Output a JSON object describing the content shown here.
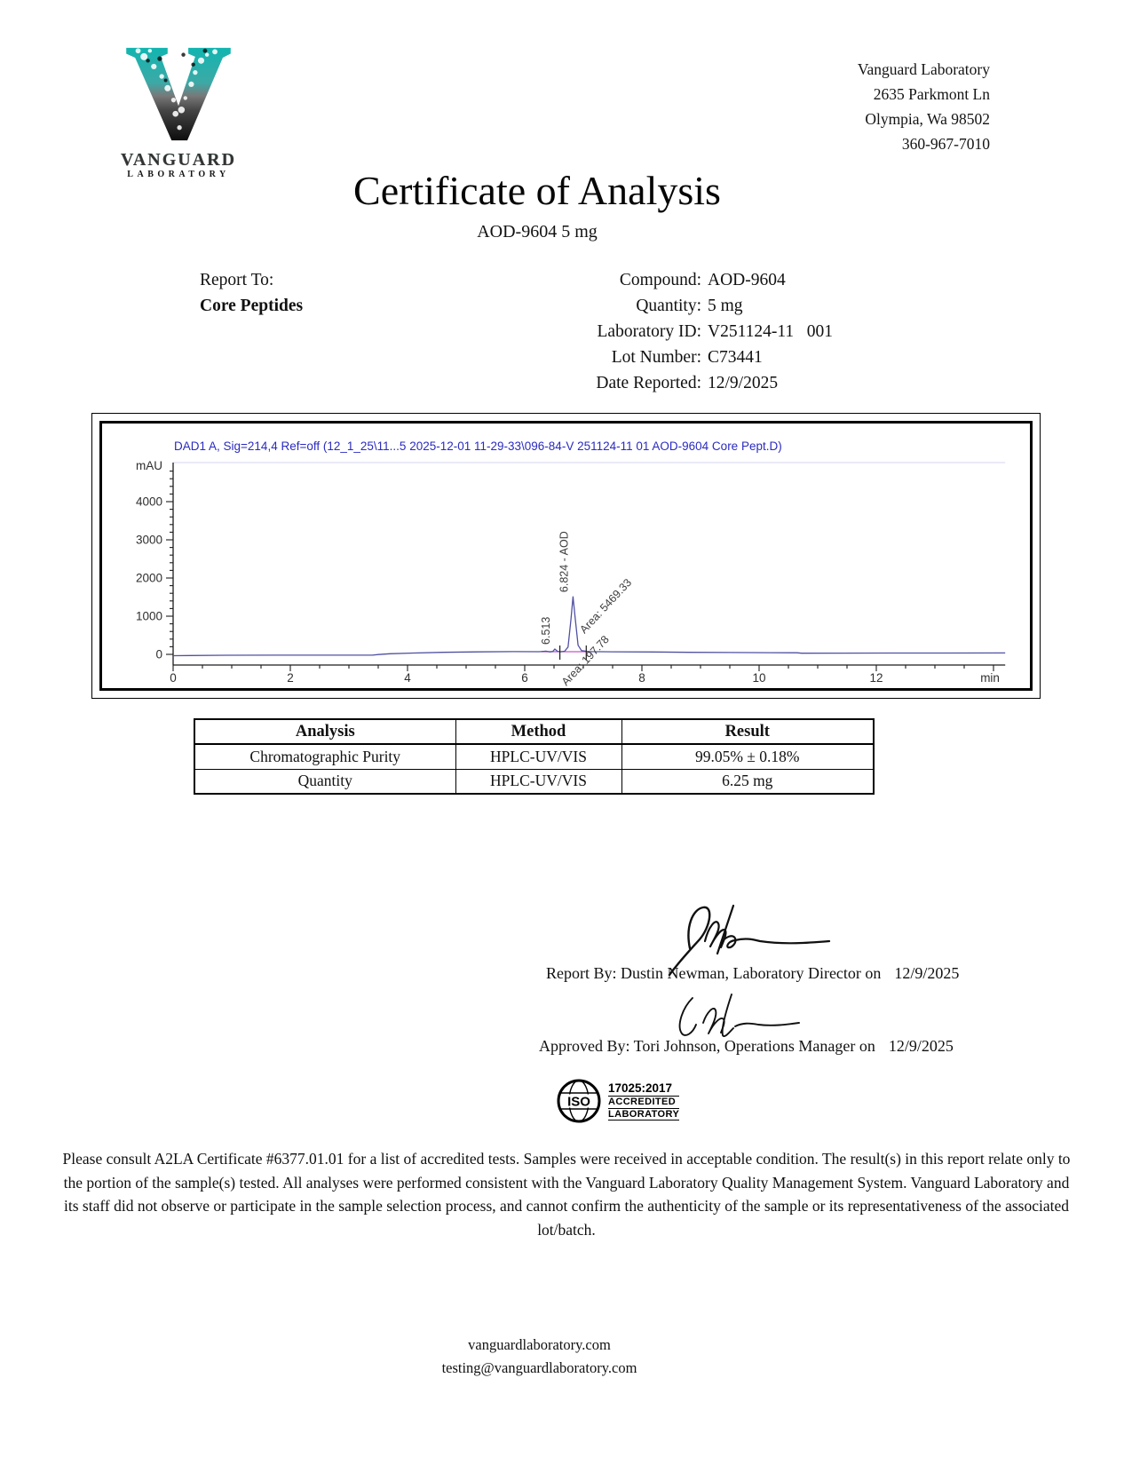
{
  "header": {
    "logo": {
      "wordmark": "VANGUARD",
      "sub": "LABORATORY"
    },
    "address": {
      "name": "Vanguard Laboratory",
      "street": "2635 Parkmont Ln",
      "city": "Olympia, Wa 98502",
      "phone": "360-967-7010"
    }
  },
  "title": {
    "main": "Certificate of Analysis",
    "subtitle": "AOD-9604 5 mg"
  },
  "report_info": {
    "report_to_label": "Report To:",
    "report_to_value": "Core Peptides",
    "fields": [
      {
        "label": "Compound:",
        "value": "AOD-9604"
      },
      {
        "label": "Quantity:",
        "value": "5 mg"
      },
      {
        "label": "Laboratory ID:",
        "value": "V251124-11   001"
      },
      {
        "label": "Lot Number:",
        "value": "C73441"
      },
      {
        "label": "Date Reported:",
        "value": "12/9/2025"
      }
    ]
  },
  "chart_data": {
    "type": "line",
    "title": "DAD1 A, Sig=214,4 Ref=off (12_1_25\\11...5 2025-12-01 11-29-33\\096-84-V 251124-11 01 AOD-9604 Core Pept.D)",
    "ylabel": "mAU",
    "xlabel": "min",
    "xticks": [
      0,
      2,
      4,
      6,
      8,
      10,
      12
    ],
    "yticks": [
      0,
      1000,
      2000,
      3000,
      4000
    ],
    "xlim": [
      0,
      14.2
    ],
    "ylim": [
      -100,
      5000
    ],
    "trace_color": "#5050a2",
    "title_color": "#2a2ac0",
    "peaks": [
      {
        "rt": 6.513,
        "rt_label": "6.513",
        "area": 197.78,
        "area_label": "Area: 197.78",
        "height_mau": 140
      },
      {
        "rt": 6.824,
        "rt_label": "6.824 - AOD",
        "area": 5469.33,
        "area_label": "Area: 5469.33",
        "height_mau": 1510
      }
    ],
    "integration_baseline": {
      "from": 6.28,
      "to": 7.15,
      "level_mau": 70,
      "color": "#c653c6"
    },
    "integration_marks": [
      6.6,
      7.05
    ],
    "trace": [
      [
        0,
        -35
      ],
      [
        0.3,
        -30
      ],
      [
        0.9,
        -24
      ],
      [
        1.8,
        -22
      ],
      [
        2.8,
        -20
      ],
      [
        3.4,
        -22
      ],
      [
        3.5,
        -4
      ],
      [
        3.7,
        16
      ],
      [
        4.1,
        34
      ],
      [
        4.6,
        54
      ],
      [
        5.2,
        66
      ],
      [
        5.8,
        72
      ],
      [
        6.25,
        70
      ],
      [
        6.36,
        84
      ],
      [
        6.43,
        66
      ],
      [
        6.48,
        76
      ],
      [
        6.513,
        140
      ],
      [
        6.56,
        80
      ],
      [
        6.62,
        70
      ],
      [
        6.68,
        82
      ],
      [
        6.74,
        190
      ],
      [
        6.79,
        920
      ],
      [
        6.824,
        1510
      ],
      [
        6.86,
        960
      ],
      [
        6.91,
        240
      ],
      [
        6.97,
        98
      ],
      [
        7.1,
        72
      ],
      [
        7.5,
        68
      ],
      [
        8.2,
        62
      ],
      [
        8.8,
        54
      ],
      [
        9.5,
        48
      ],
      [
        10.2,
        44
      ],
      [
        10.65,
        42
      ],
      [
        10.72,
        30
      ],
      [
        11.4,
        32
      ],
      [
        12.2,
        34
      ],
      [
        13.2,
        36
      ],
      [
        14.2,
        38
      ]
    ]
  },
  "results_table": {
    "headers": [
      "Analysis",
      "Method",
      "Result"
    ],
    "rows": [
      [
        "Chromatographic Purity",
        "HPLC-UV/VIS",
        "99.05% ± 0.18%"
      ],
      [
        "Quantity",
        "HPLC-UV/VIS",
        "6.25 mg"
      ]
    ]
  },
  "signatures": [
    {
      "line": "Report By: Dustin Newman, Laboratory Director on",
      "date": "12/9/2025"
    },
    {
      "line": "Approved By: Tori Johnson, Operations Manager on",
      "date": "12/9/2025"
    }
  ],
  "accreditation": {
    "iso": "ISO",
    "standard": "17025:2017",
    "line1": "ACCREDITED",
    "line2": "LABORATORY"
  },
  "disclaimer": "Please consult A2LA Certificate #6377.01.01 for a list of accredited tests. Samples were received in acceptable condition. The result(s) in this report relate only to the portion of the sample(s) tested. All analyses were performed consistent with the Vanguard Laboratory Quality Management System. Vanguard Laboratory and its staff did not observe or participate in the sample selection process, and cannot confirm the authenticity of the sample or its representativeness of the associated lot/batch.",
  "footer": {
    "website": "vanguardlaboratory.com",
    "email": "testing@vanguardlaboratory.com"
  }
}
